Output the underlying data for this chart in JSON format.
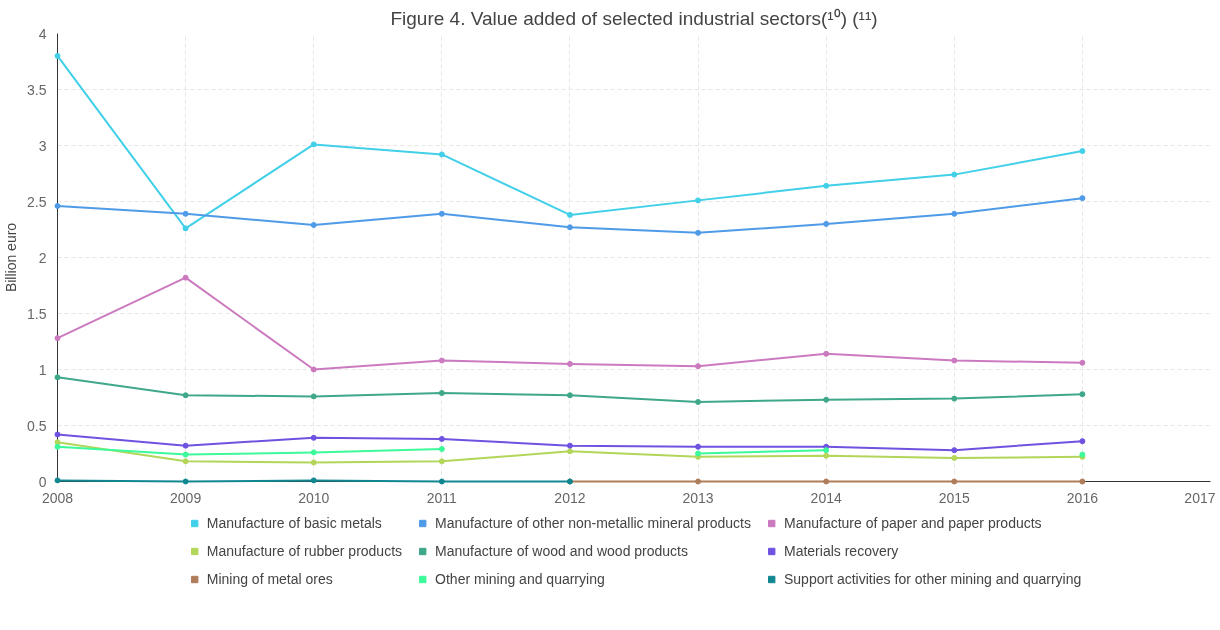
{
  "chart_data": {
    "type": "line",
    "title": "Figure 4. Value added of selected industrial sectors(¹⁰) (¹¹)",
    "ylabel": "Billion euro",
    "x": [
      2008,
      2009,
      2010,
      2011,
      2012,
      2013,
      2014,
      2015,
      2016
    ],
    "xlim": [
      2008,
      2017
    ],
    "xticks": [
      2008,
      2009,
      2010,
      2011,
      2012,
      2013,
      2014,
      2015,
      2016,
      2017
    ],
    "ylim": [
      0,
      4
    ],
    "yticks": [
      0,
      0.5,
      1,
      1.5,
      2,
      2.5,
      3,
      3.5,
      4
    ],
    "grid": true,
    "legend": "bottom",
    "marker": "circle",
    "line_style": "solid",
    "series": [
      {
        "name": "Manufacture of basic metals",
        "color": "#41d0e8",
        "values": [
          3.8,
          2.26,
          3.01,
          2.92,
          2.38,
          2.51,
          2.64,
          2.74,
          2.95
        ]
      },
      {
        "name": "Manufacture of other non-metallic mineral products",
        "color": "#4f9be8",
        "values": [
          2.46,
          2.39,
          2.29,
          2.39,
          2.27,
          2.22,
          2.3,
          2.39,
          2.53
        ]
      },
      {
        "name": "Manufacture of paper and paper products",
        "color": "#cc7abf",
        "values": [
          1.28,
          1.82,
          1.0,
          1.08,
          1.05,
          1.03,
          1.14,
          1.08,
          1.06
        ]
      },
      {
        "name": "Manufacture of rubber products",
        "color": "#b3d65a",
        "values": [
          0.35,
          0.18,
          0.17,
          0.18,
          0.27,
          0.22,
          0.23,
          0.21,
          0.22
        ]
      },
      {
        "name": "Manufacture of wood and wood products",
        "color": "#3fa88a",
        "values": [
          0.93,
          0.77,
          0.76,
          0.79,
          0.77,
          0.71,
          0.73,
          0.74,
          0.78
        ]
      },
      {
        "name": "Materials recovery",
        "color": "#7052e0",
        "values": [
          0.42,
          0.32,
          0.39,
          0.38,
          0.32,
          0.31,
          0.31,
          0.28,
          0.36
        ]
      },
      {
        "name": "Mining of metal ores",
        "color": "#b07d5a",
        "values": [
          null,
          null,
          null,
          null,
          0,
          0,
          0,
          0,
          0
        ]
      },
      {
        "name": "Other mining and quarrying",
        "color": "#3cf99a",
        "values": [
          0.31,
          0.24,
          0.26,
          0.29,
          null,
          0.25,
          0.28,
          null,
          0.24
        ]
      },
      {
        "name": "Support activities for other mining and quarrying",
        "color": "#118891",
        "values": [
          0.01,
          0,
          0.01,
          0,
          0,
          null,
          null,
          null,
          null
        ]
      }
    ]
  }
}
